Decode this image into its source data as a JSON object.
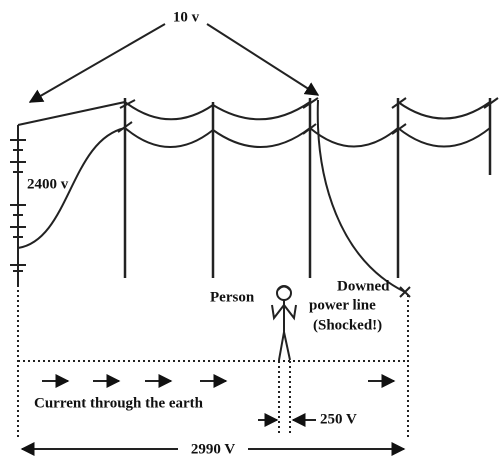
{
  "labels": {
    "top_voltage": "10 v",
    "source_voltage": "2400 v",
    "person": "Person",
    "downed_line": [
      "Downed",
      "power line",
      "(Shocked!)"
    ],
    "earth_current": "Current through the earth",
    "step_voltage": "250 V",
    "ground_voltage": "2990 V"
  }
}
